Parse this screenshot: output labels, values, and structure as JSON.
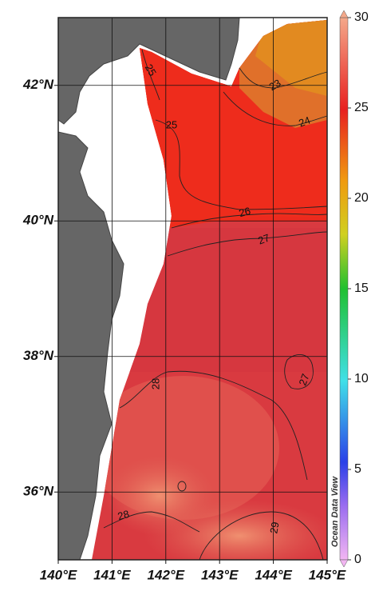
{
  "map": {
    "xlim": [
      140,
      145
    ],
    "ylim": [
      35,
      43
    ],
    "xticks": [
      {
        "value": 140,
        "label": "140°E"
      },
      {
        "value": 141,
        "label": "141°E"
      },
      {
        "value": 142,
        "label": "142°E"
      },
      {
        "value": 143,
        "label": "143°E"
      },
      {
        "value": 144,
        "label": "144°E"
      },
      {
        "value": 145,
        "label": "145°E"
      }
    ],
    "yticks": [
      {
        "value": 36,
        "label": "36°N"
      },
      {
        "value": 38,
        "label": "38°N"
      },
      {
        "value": 40,
        "label": "40°N"
      },
      {
        "value": 42,
        "label": "42°N"
      }
    ],
    "grid": true,
    "contour_labels": [
      25,
      25,
      23,
      24,
      26,
      27,
      28,
      27,
      28,
      29
    ],
    "colorbar": {
      "lim": [
        0,
        30
      ],
      "ticks": [
        0,
        5,
        10,
        15,
        20,
        25,
        30
      ]
    },
    "watermark": "Ocean Data View"
  }
}
